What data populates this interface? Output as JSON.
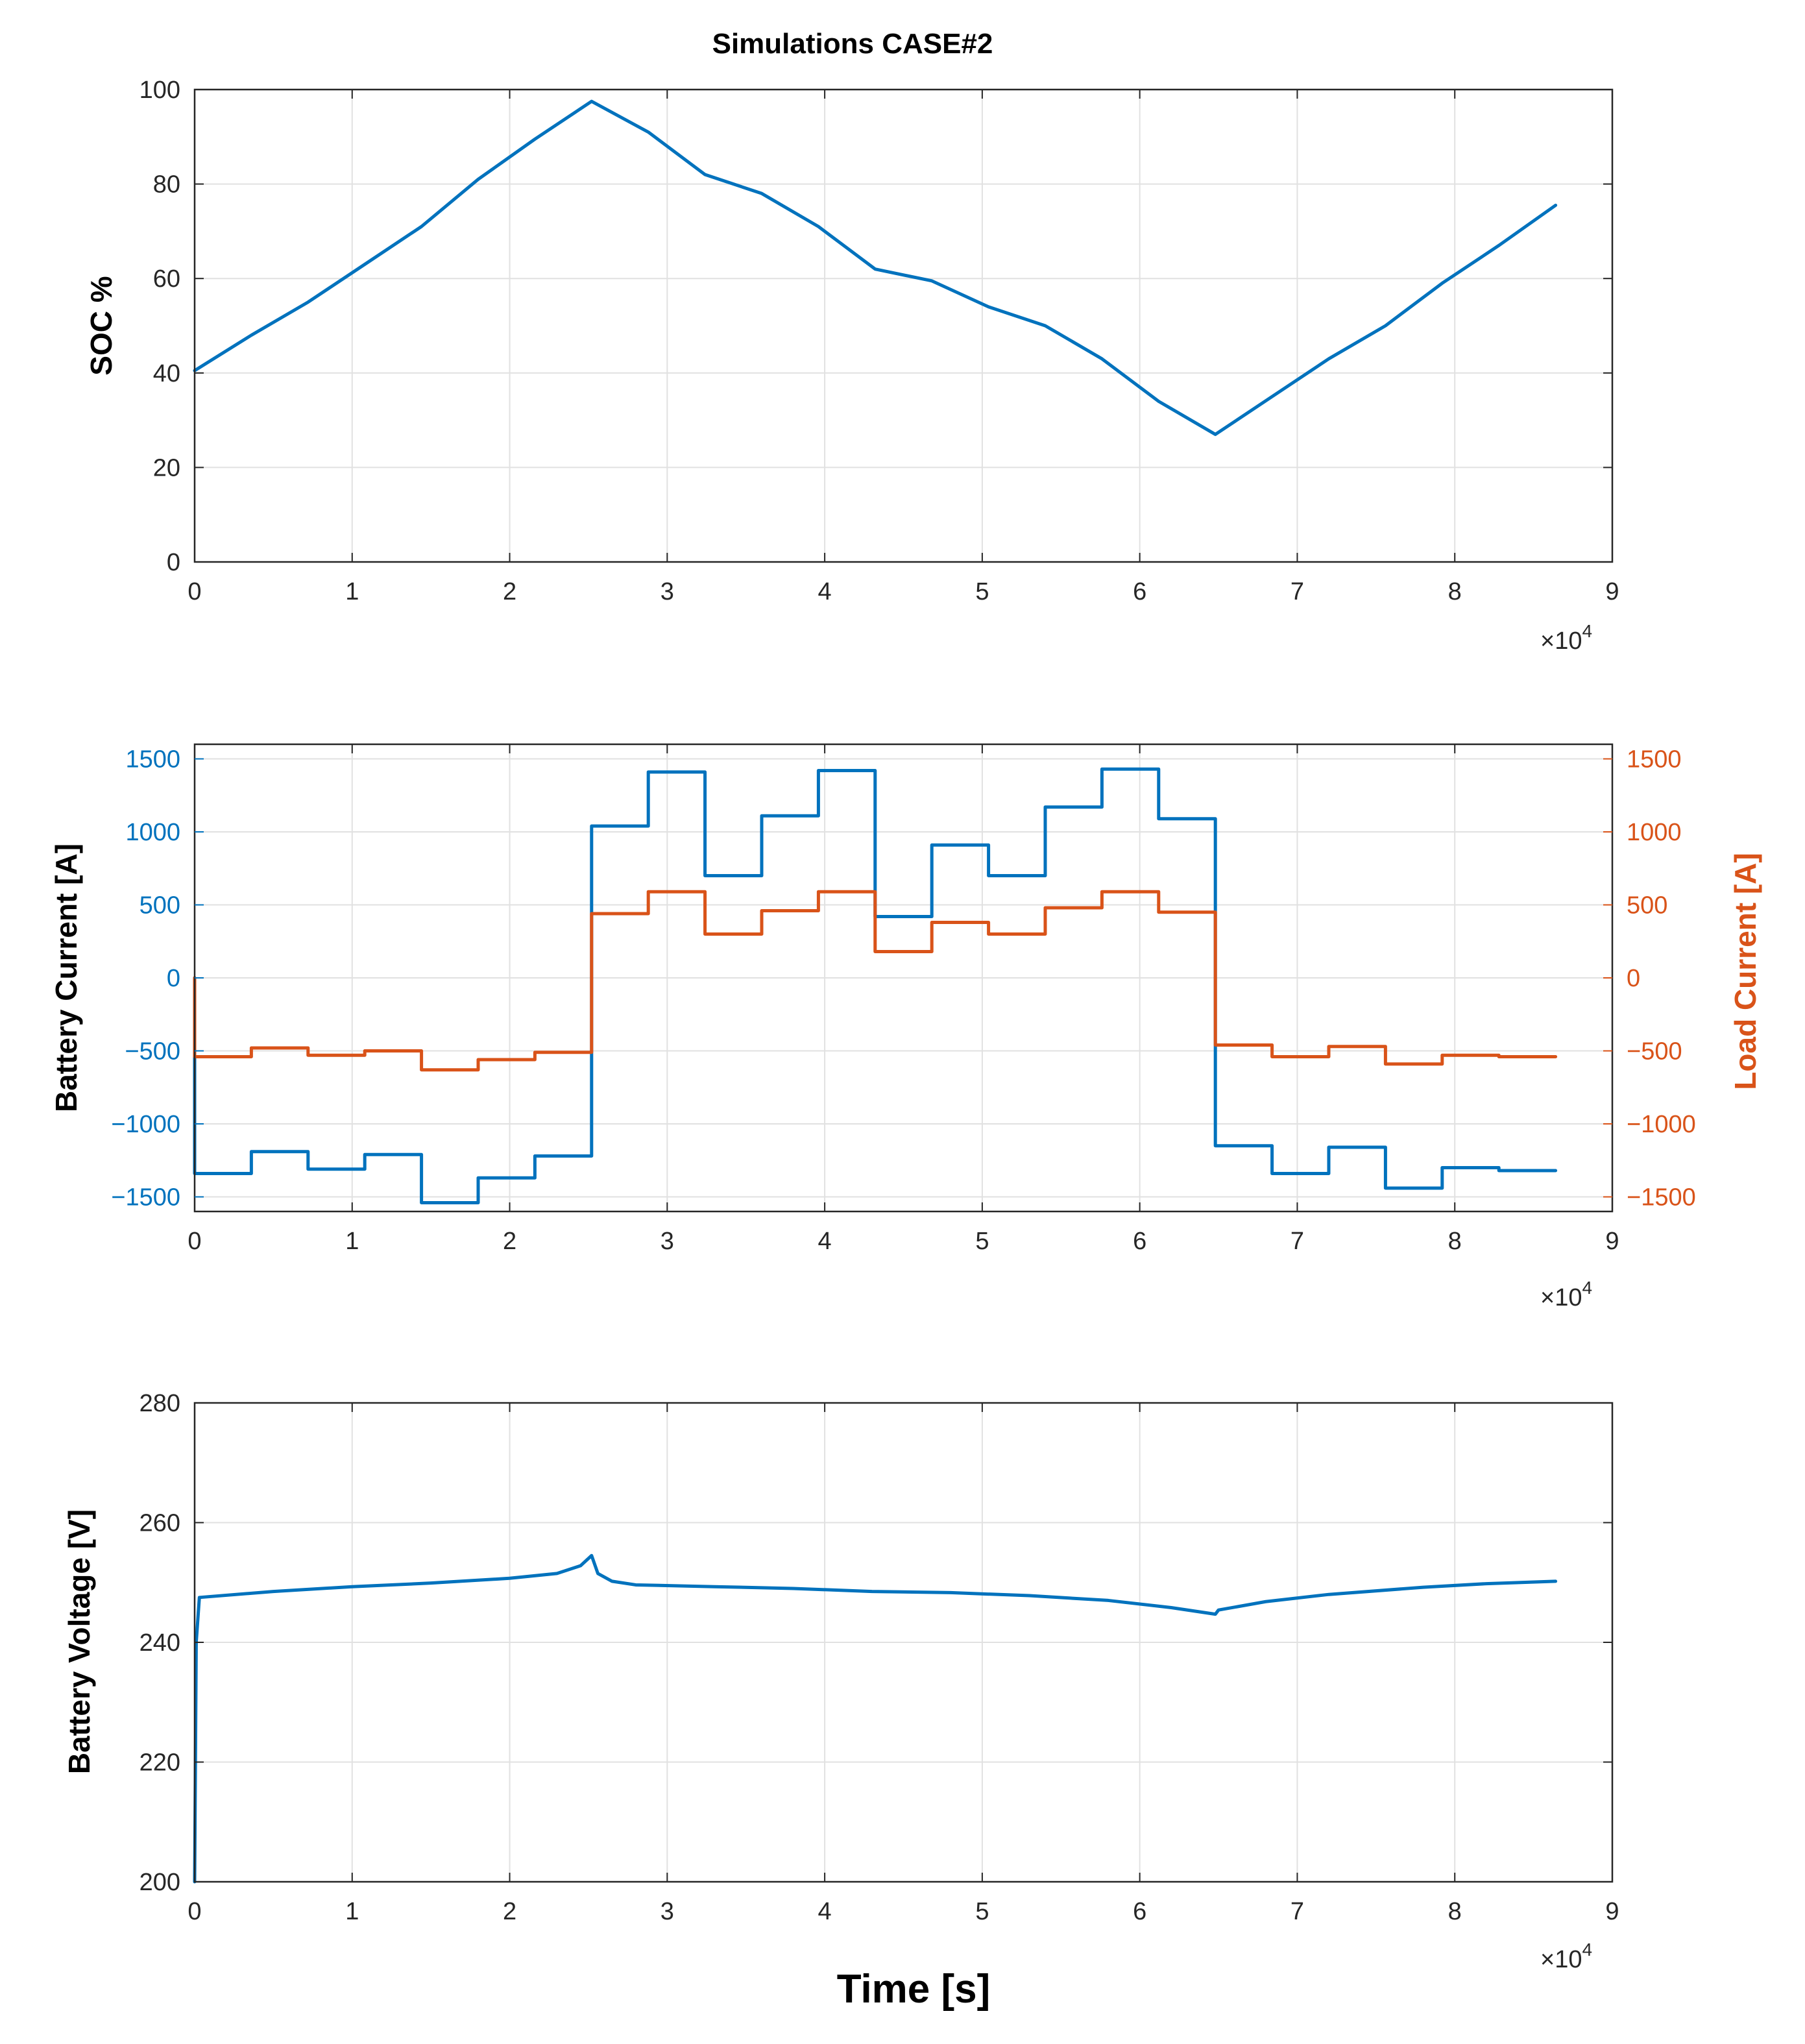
{
  "figure": {
    "title": "Simulations CASE#2",
    "xlabel": "Time [s]",
    "x_multiplier": "×10",
    "x_exponent": "4"
  },
  "colors": {
    "blue": "#0072BD",
    "orange": "#D95319"
  },
  "chart_data": [
    {
      "type": "line",
      "id": "soc",
      "ylabel": "SOC %",
      "xlim": [
        0,
        90000
      ],
      "ylim": [
        0,
        100
      ],
      "xticks": [
        "0",
        "1",
        "2",
        "3",
        "4",
        "5",
        "6",
        "7",
        "8",
        "9"
      ],
      "yticks": [
        "0",
        "20",
        "40",
        "60",
        "80",
        "100"
      ],
      "grid": true,
      "series": [
        {
          "name": "SOC",
          "color": "#0072BD",
          "x": [
            0,
            3600,
            7200,
            10800,
            14400,
            18000,
            21600,
            25200,
            28800,
            32400,
            36000,
            39600,
            43200,
            46800,
            50400,
            54000,
            57600,
            61200,
            64800,
            68400,
            72000,
            75600,
            79200,
            82800,
            86400
          ],
          "y": [
            40.5,
            48,
            55,
            63,
            71,
            81,
            89.5,
            97.5,
            91,
            82,
            78,
            71,
            62,
            59.5,
            54,
            50,
            43,
            34,
            27,
            35,
            43,
            50,
            59,
            67,
            75.5
          ]
        }
      ]
    },
    {
      "type": "line",
      "id": "current",
      "ylabel": "Battery Current  [A]",
      "ylabel_right": "Load Current  [A]",
      "xlim": [
        0,
        90000
      ],
      "ylim": [
        -1600,
        1600
      ],
      "xticks": [
        "0",
        "1",
        "2",
        "3",
        "4",
        "5",
        "6",
        "7",
        "8",
        "9"
      ],
      "yticks": [
        "-1500",
        "-1000",
        "-500",
        "0",
        "500",
        "1000",
        "1500"
      ],
      "grid": true,
      "series": [
        {
          "name": "Battery Current",
          "axis": "left",
          "color": "#0072BD",
          "step": true,
          "x": [
            0,
            3600,
            7200,
            10800,
            14400,
            18000,
            21600,
            25200,
            28800,
            32400,
            36000,
            39600,
            43200,
            46800,
            50400,
            54000,
            57600,
            61200,
            64800,
            68400,
            72000,
            75600,
            79200,
            82800,
            86400
          ],
          "y": [
            -1340,
            -1190,
            -1310,
            -1210,
            -1540,
            -1370,
            -1220,
            1040,
            1410,
            700,
            1110,
            1420,
            420,
            910,
            700,
            1170,
            1430,
            1090,
            -1150,
            -1340,
            -1160,
            -1440,
            -1300,
            -1320,
            -1320
          ]
        },
        {
          "name": "Load Current",
          "axis": "right",
          "color": "#D95319",
          "step": true,
          "x": [
            0,
            3600,
            7200,
            10800,
            14400,
            18000,
            21600,
            25200,
            28800,
            32400,
            36000,
            39600,
            43200,
            46800,
            50400,
            54000,
            57600,
            61200,
            64800,
            68400,
            72000,
            75600,
            79200,
            82800,
            86400
          ],
          "y": [
            -540,
            -480,
            -530,
            -500,
            -630,
            -560,
            -510,
            440,
            590,
            300,
            460,
            590,
            180,
            380,
            300,
            480,
            590,
            450,
            -460,
            -540,
            -470,
            -590,
            -530,
            -540,
            -540
          ]
        }
      ]
    },
    {
      "type": "line",
      "id": "voltage",
      "ylabel": "Battery Voltage  [V]",
      "xlim": [
        0,
        90000
      ],
      "ylim": [
        200,
        280
      ],
      "xticks": [
        "0",
        "1",
        "2",
        "3",
        "4",
        "5",
        "6",
        "7",
        "8",
        "9"
      ],
      "yticks": [
        "200",
        "220",
        "240",
        "260",
        "280"
      ],
      "grid": true,
      "series": [
        {
          "name": "Battery Voltage",
          "color": "#0072BD",
          "x": [
            0,
            100,
            300,
            5000,
            10000,
            15000,
            20000,
            23000,
            24500,
            25200,
            25600,
            26500,
            28000,
            33000,
            38000,
            43000,
            48000,
            53000,
            58000,
            62000,
            64800,
            65000,
            68000,
            72000,
            78000,
            82000,
            86400
          ],
          "y": [
            200,
            240,
            247.5,
            248.5,
            249.3,
            249.9,
            250.7,
            251.5,
            252.8,
            254.5,
            251.5,
            250.2,
            249.6,
            249.3,
            249,
            248.5,
            248.3,
            247.8,
            247,
            245.8,
            244.7,
            245.4,
            246.8,
            248,
            249.2,
            249.8,
            250.2
          ]
        }
      ]
    }
  ]
}
